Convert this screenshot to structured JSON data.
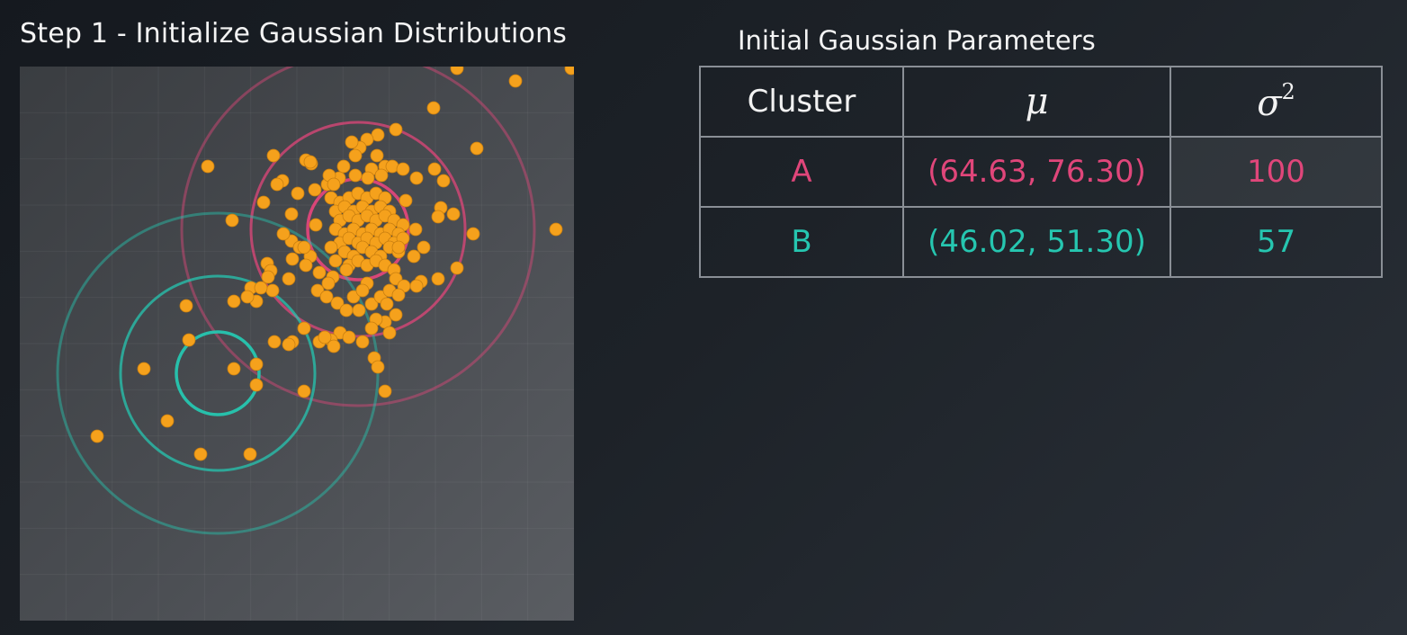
{
  "header": {
    "title": "Step 1 - Initialize Gaussian Distributions"
  },
  "table": {
    "title": "Initial Gaussian Parameters",
    "headers": {
      "cluster": "Cluster",
      "mu": "μ",
      "sigma": "σ",
      "sigma_sup": "2"
    },
    "rows": [
      {
        "cluster": "A",
        "mu": "(64.63, 76.30)",
        "sigma2": "100",
        "color": "#e0467a"
      },
      {
        "cluster": "B",
        "mu": "(46.02, 51.30)",
        "sigma2": "57",
        "color": "#26c6b0"
      }
    ]
  },
  "plot": {
    "colors": {
      "point": "#f5a11c",
      "cluster_a": "#e0467a",
      "cluster_b": "#26c6b0"
    }
  }
}
